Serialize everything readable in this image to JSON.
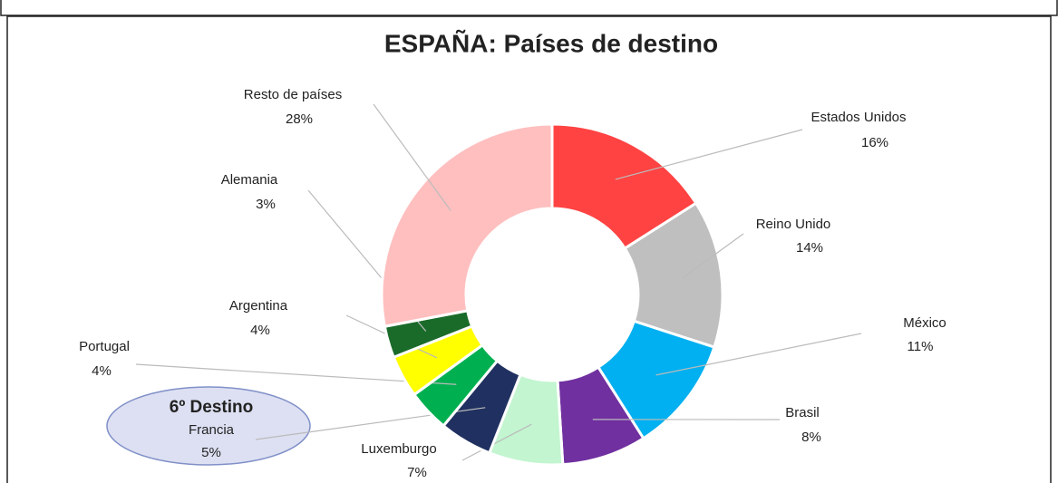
{
  "chart_data": {
    "type": "donut",
    "title": "ESPAÑA: Países de destino",
    "annotation": "6º Destino",
    "categories": [
      "Estados Unidos",
      "Reino Unido",
      "México",
      "Brasil",
      "Luxemburgo",
      "Francia",
      "Portugal",
      "Argentina",
      "Alemania",
      "Resto de países"
    ],
    "values": [
      16,
      14,
      11,
      8,
      7,
      5,
      4,
      4,
      3,
      28
    ],
    "value_labels": [
      "16%",
      "14%",
      "11%",
      "8%",
      "7%",
      "5%",
      "4%",
      "4%",
      "3%",
      "28%"
    ],
    "colors": [
      "#ff4343",
      "#bfbfbf",
      "#00b0f0",
      "#7030a0",
      "#c2f5d0",
      "#203060",
      "#00b050",
      "#ffff00",
      "#1a6b2a",
      "#ffbfbf"
    ]
  }
}
